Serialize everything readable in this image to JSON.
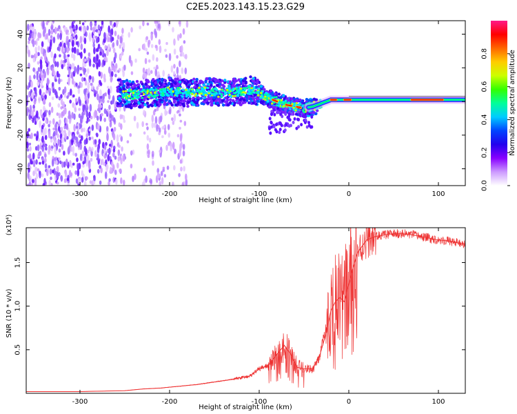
{
  "figure_title": "C2E5.2023.143.15.23.G29",
  "colors": {
    "snr_line": "#ee3030",
    "track_red": "#ee1010",
    "colorbar": [
      "#ffffff",
      "#cc99ff",
      "#8800ff",
      "#2200ee",
      "#0044ff",
      "#00ccff",
      "#00ff99",
      "#33ff00",
      "#ccff00",
      "#ffcc00",
      "#ff6600",
      "#ff0000",
      "#ff1a88"
    ]
  },
  "chart_data": [
    {
      "type": "heatmap",
      "title": "C2E5.2023.143.15.23.G29",
      "xlabel": "Height of straight line (km)",
      "ylabel": "Frequency (Hz)",
      "xlim": [
        -360,
        130
      ],
      "ylim": [
        -50,
        48
      ],
      "xticks": [
        "-300",
        "-200",
        "-100",
        "0",
        "100"
      ],
      "yticks": [
        "-40",
        "-20",
        "0",
        "20",
        "40"
      ],
      "colorbar": {
        "label": "Normalized spectral amplitude",
        "range": [
          0,
          1
        ],
        "ticks": [
          "0.0",
          "0.2",
          "0.4",
          "0.6",
          "0.8"
        ]
      },
      "track": {
        "x": [
          -255,
          -240,
          -220,
          -200,
          -180,
          -160,
          -140,
          -120,
          -110,
          -100,
          -90,
          -80,
          -70,
          -60,
          -50,
          -40,
          -30,
          -20,
          -10,
          0,
          20,
          50,
          80,
          100,
          130
        ],
        "freq": [
          5,
          4,
          5,
          6,
          5,
          6,
          5,
          6,
          7,
          5,
          2,
          0,
          -2,
          -3,
          -4,
          -3,
          -1,
          1,
          1,
          1,
          1,
          1,
          1,
          1,
          1
        ]
      }
    },
    {
      "type": "line",
      "xlabel": "Height of straight line (km)",
      "ylabel": "SNR (10 * v/v)",
      "y_multiplier": "(x10⁴)",
      "xlim": [
        -360,
        130
      ],
      "ylim": [
        0,
        1.9
      ],
      "xticks": [
        "-300",
        "-200",
        "-100",
        "0",
        "100"
      ],
      "yticks": [
        "0.5",
        "1.0",
        "1.5"
      ],
      "series": [
        {
          "name": "SNR",
          "x": [
            -360,
            -300,
            -250,
            -230,
            -210,
            -190,
            -170,
            -150,
            -130,
            -110,
            -100,
            -90,
            -80,
            -72,
            -65,
            -58,
            -50,
            -40,
            -32,
            -25,
            -20,
            -15,
            -10,
            -5,
            0,
            5,
            10,
            20,
            30,
            40,
            50,
            60,
            70,
            80,
            90,
            100,
            110,
            120,
            130
          ],
          "values": [
            0.02,
            0.02,
            0.03,
            0.05,
            0.06,
            0.08,
            0.1,
            0.13,
            0.16,
            0.2,
            0.28,
            0.32,
            0.45,
            0.55,
            0.45,
            0.3,
            0.28,
            0.28,
            0.45,
            0.7,
            0.95,
            1.05,
            1.1,
            1.05,
            1.25,
            1.45,
            1.62,
            1.76,
            1.8,
            1.82,
            1.83,
            1.83,
            1.82,
            1.8,
            1.78,
            1.76,
            1.75,
            1.73,
            1.71
          ]
        }
      ]
    }
  ]
}
